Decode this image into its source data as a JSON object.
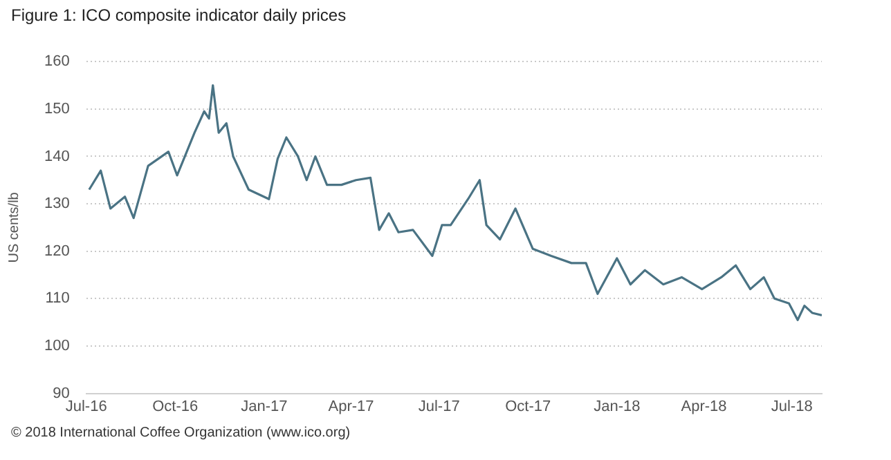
{
  "chart_data": {
    "type": "line",
    "title": "Figure 1: ICO composite indicator daily prices",
    "ylabel": "US cents/lb",
    "annotations": [
      "© 2018 International Coffee Organization (www.ico.org)"
    ],
    "x": [
      "2016-07-04",
      "2016-07-16",
      "2016-07-26",
      "2016-08-10",
      "2016-08-19",
      "2016-09-03",
      "2016-09-24",
      "2016-10-03",
      "2016-10-10",
      "2016-10-21",
      "2016-10-31",
      "2016-11-05",
      "2016-11-09",
      "2016-11-15",
      "2016-11-23",
      "2016-11-30",
      "2016-12-16",
      "2017-01-06",
      "2017-01-15",
      "2017-01-24",
      "2017-02-05",
      "2017-02-14",
      "2017-02-23",
      "2017-03-07",
      "2017-03-22",
      "2017-04-06",
      "2017-04-21",
      "2017-04-30",
      "2017-05-10",
      "2017-05-20",
      "2017-06-04",
      "2017-06-24",
      "2017-07-04",
      "2017-07-13",
      "2017-07-31",
      "2017-08-12",
      "2017-08-19",
      "2017-09-02",
      "2017-09-18",
      "2017-10-06",
      "2017-10-25",
      "2017-11-15",
      "2017-11-30",
      "2017-12-12",
      "2018-01-01",
      "2018-01-15",
      "2018-01-30",
      "2018-02-18",
      "2018-03-09",
      "2018-03-30",
      "2018-04-19",
      "2018-05-04",
      "2018-05-19",
      "2018-06-02",
      "2018-06-13",
      "2018-06-28",
      "2018-07-07",
      "2018-07-14",
      "2018-07-22",
      "2018-08-01"
    ],
    "series": [
      {
        "color": "#4a7384",
        "values": [
          133,
          137,
          129,
          131.5,
          127,
          138,
          141,
          136,
          139.5,
          145,
          149.5,
          148,
          155,
          145,
          147,
          140,
          133,
          131,
          139.5,
          144,
          140,
          135,
          140,
          134,
          134,
          135,
          135.5,
          124.5,
          128,
          124,
          124.5,
          119,
          125.5,
          125.5,
          131,
          135,
          125.5,
          122.5,
          129,
          120.5,
          119,
          117.5,
          117.5,
          111,
          118.5,
          113,
          116,
          113,
          114.5,
          112,
          114.5,
          117,
          112,
          114.5,
          110,
          109,
          105.5,
          108.5,
          107,
          106.5
        ]
      }
    ],
    "xlim": [
      "2016-07-01",
      "2018-08-01"
    ],
    "xticks": [
      {
        "value": "2016-07-01",
        "label": "Jul-16"
      },
      {
        "value": "2016-10-01",
        "label": "Oct-16"
      },
      {
        "value": "2017-01-01",
        "label": "Jan-17"
      },
      {
        "value": "2017-04-01",
        "label": "Apr-17"
      },
      {
        "value": "2017-07-01",
        "label": "Jul-17"
      },
      {
        "value": "2017-10-01",
        "label": "Oct-17"
      },
      {
        "value": "2018-01-01",
        "label": "Jan-18"
      },
      {
        "value": "2018-04-01",
        "label": "Apr-18"
      },
      {
        "value": "2018-07-01",
        "label": "Jul-18"
      }
    ],
    "ylim": [
      90,
      160
    ],
    "yticks": [
      90,
      100,
      110,
      120,
      130,
      140,
      150,
      160
    ],
    "grid": "y",
    "legend": false,
    "marker": "none",
    "line_style": "solid"
  }
}
